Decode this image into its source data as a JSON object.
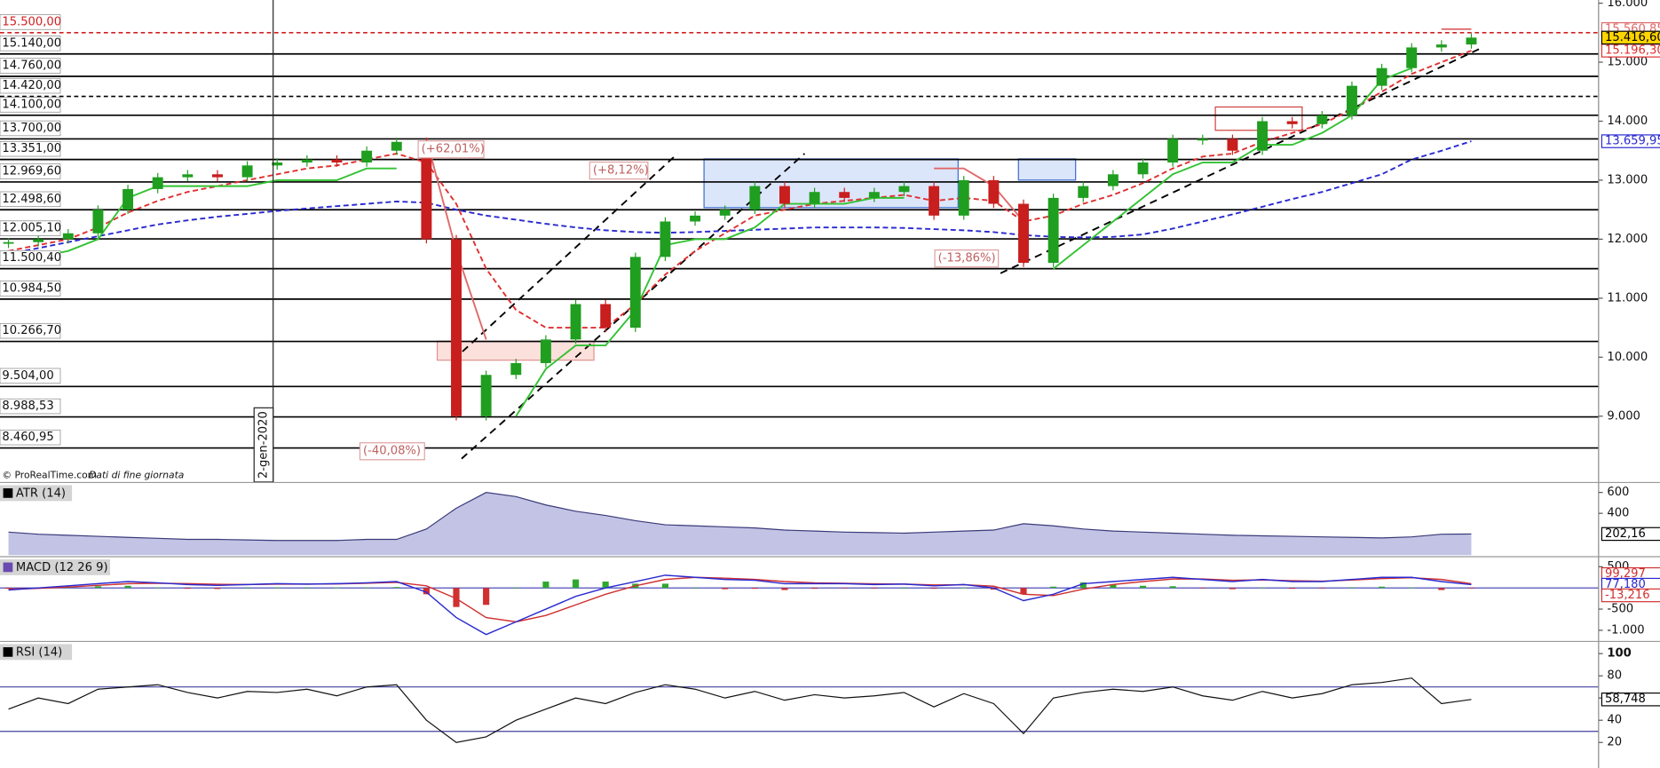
{
  "chart_data": [
    {
      "type": "candlestick",
      "values": [
        11950,
        12000,
        12100,
        12500,
        12850,
        13050,
        13100,
        13050,
        13250,
        13300,
        13350,
        13300,
        13500,
        13650,
        12000,
        9000,
        9700,
        9900,
        10300,
        10900,
        10500,
        11700,
        12300,
        12400,
        12500,
        12900,
        12600,
        12800,
        12700,
        12800,
        12900,
        12400,
        13000,
        12600,
        11600,
        12700,
        12900,
        13100,
        13300,
        13700,
        13700,
        13500,
        14000,
        13950,
        14100,
        14600,
        14900,
        15250,
        15300,
        15416.6
      ],
      "last_label": "15.416,60",
      "up_color": "#1f9e1f",
      "down_color": "#c81e1e",
      "ylim": [
        7885,
        16054
      ],
      "yticks": [
        {
          "value": 16000,
          "label": "16.000"
        },
        {
          "value": 15000,
          "label": "15.000"
        },
        {
          "value": 14000,
          "label": "14.000"
        },
        {
          "value": 13000,
          "label": "13.000"
        },
        {
          "value": 12000,
          "label": "12.000"
        },
        {
          "value": 11000,
          "label": "11.000"
        },
        {
          "value": 10000,
          "label": "10.000"
        },
        {
          "value": 9000,
          "label": "9.000"
        }
      ],
      "levels": [
        {
          "value": 15500,
          "label": "15.500,00",
          "color": "#d02020",
          "dashed": true
        },
        {
          "value": 15140,
          "label": "15.140,00"
        },
        {
          "value": 14760,
          "label": "14.760,00"
        },
        {
          "value": 14420,
          "label": "14.420,00",
          "dashed": true
        },
        {
          "value": 14100,
          "label": "14.100,00"
        },
        {
          "value": 13700,
          "label": "13.700,00"
        },
        {
          "value": 13351,
          "label": "13.351,00"
        },
        {
          "value": 12969.6,
          "label": "12.969,60"
        },
        {
          "value": 12498.6,
          "label": "12.498,60"
        },
        {
          "value": 12005.1,
          "label": "12.005,10"
        },
        {
          "value": 11500.4,
          "label": "11.500,40"
        },
        {
          "value": 10984.5,
          "label": "10.984,50"
        },
        {
          "value": 10266.7,
          "label": "10.266,70"
        },
        {
          "value": 9504,
          "label": "9.504,00"
        },
        {
          "value": 8988.53,
          "label": "8.988,53"
        },
        {
          "value": 8460.95,
          "label": "8.460,95"
        }
      ],
      "overlays": [
        {
          "color": "#2a2ad0",
          "dash": "5,3",
          "last_label": "13.659,95",
          "values": [
            11750,
            11850,
            11950,
            12050,
            12150,
            12250,
            12320,
            12380,
            12430,
            12480,
            12520,
            12560,
            12600,
            12640,
            12620,
            12500,
            12400,
            12330,
            12260,
            12200,
            12150,
            12120,
            12110,
            12120,
            12140,
            12160,
            12180,
            12200,
            12200,
            12200,
            12190,
            12170,
            12150,
            12120,
            12070,
            12040,
            12030,
            12040,
            12080,
            12180,
            12300,
            12420,
            12550,
            12680,
            12800,
            12950,
            13100,
            13350,
            13500,
            13659.95
          ]
        },
        {
          "color": "#e03030",
          "dash": "5,3",
          "last_label": "15.196,30",
          "values": [
            11800,
            11900,
            12000,
            12200,
            12450,
            12650,
            12800,
            12900,
            13000,
            13100,
            13200,
            13250,
            13350,
            13450,
            13300,
            12600,
            11500,
            10800,
            10500,
            10500,
            10500,
            10900,
            11400,
            11800,
            12100,
            12400,
            12500,
            12600,
            12650,
            12700,
            12750,
            12650,
            12700,
            12650,
            12300,
            12400,
            12600,
            12750,
            12950,
            13200,
            13400,
            13450,
            13650,
            13800,
            13950,
            14200,
            14500,
            14800,
            15000,
            15196.3
          ]
        },
        {
          "color": "#33c233",
          "values": [
            11700,
            11700,
            11800,
            12000,
            12700,
            12900,
            12900,
            12900,
            12900,
            13000,
            13000,
            13000,
            13200,
            13200,
            null,
            null,
            null,
            9000,
            9800,
            10200,
            10200,
            10800,
            11900,
            12000,
            12000,
            12200,
            12600,
            12600,
            12600,
            12700,
            12700,
            null,
            null,
            null,
            null,
            11500,
            11900,
            12300,
            12700,
            13100,
            13300,
            13300,
            13600,
            13600,
            13800,
            14100,
            14700,
            14900,
            null,
            null
          ]
        },
        {
          "color": "#e06a6a",
          "last_label": "15.560,85",
          "values": [
            null,
            null,
            null,
            null,
            null,
            null,
            null,
            null,
            null,
            null,
            null,
            null,
            null,
            null,
            13700,
            11800,
            10300,
            null,
            null,
            null,
            null,
            null,
            null,
            null,
            null,
            null,
            null,
            null,
            null,
            null,
            null,
            13200,
            13200,
            12900,
            12300,
            null,
            null,
            null,
            null,
            null,
            null,
            null,
            null,
            null,
            null,
            null,
            null,
            null,
            15560.85,
            15560.85
          ]
        }
      ],
      "annotations": [
        "(+62,01%)",
        "(+8,12%)",
        "(-13,86%)",
        "(-40,08%)"
      ],
      "date_marker": "2-gen-2020",
      "source": "© ProRealTime.com",
      "source_note": "Dati di fine giornata"
    },
    {
      "type": "area",
      "title": "ATR (14)",
      "color": "#3a3a7a",
      "fill": "#b8b8e0",
      "values": [
        220,
        200,
        190,
        180,
        170,
        160,
        150,
        150,
        145,
        140,
        140,
        140,
        150,
        150,
        250,
        450,
        600,
        560,
        480,
        420,
        380,
        330,
        290,
        280,
        270,
        260,
        240,
        230,
        220,
        215,
        210,
        220,
        230,
        240,
        300,
        280,
        250,
        230,
        220,
        210,
        200,
        190,
        185,
        180,
        175,
        170,
        165,
        175,
        200,
        202.16
      ],
      "last_label": "202,16",
      "ylim": [
        -10,
        690
      ],
      "yticks": [
        400,
        600
      ]
    },
    {
      "type": "macd",
      "title": "MACD (12 26 9)",
      "ylim": [
        -1250,
        725
      ],
      "yticks": [
        500,
        -500,
        {
          "value": -1000,
          "label": "-1.000"
        }
      ],
      "lines": [
        {
          "color": "#d03030",
          "last_label": "99,297",
          "values": [
            -30,
            -10,
            20,
            60,
            100,
            110,
            100,
            85,
            80,
            90,
            90,
            95,
            110,
            130,
            50,
            -250,
            -700,
            -800,
            -650,
            -400,
            -150,
            50,
            200,
            250,
            230,
            200,
            150,
            120,
            110,
            95,
            90,
            70,
            75,
            40,
            -150,
            -180,
            -30,
            80,
            150,
            210,
            210,
            180,
            190,
            170,
            160,
            185,
            220,
            240,
            200,
            99.297
          ]
        },
        {
          "color": "#2a2ad0",
          "last_label": "77,180",
          "values": [
            -50,
            0,
            50,
            100,
            150,
            120,
            80,
            60,
            80,
            100,
            90,
            100,
            120,
            150,
            -100,
            -700,
            -1100,
            -800,
            -500,
            -200,
            0,
            150,
            300,
            250,
            200,
            180,
            100,
            100,
            100,
            80,
            90,
            50,
            80,
            0,
            -300,
            -150,
            100,
            150,
            200,
            250,
            200,
            150,
            200,
            150,
            150,
            200,
            250,
            250,
            150,
            77.18
          ]
        }
      ],
      "histogram": {
        "up_color": "#2fa82f",
        "down_color": "#d03030",
        "last_label": "-13,216",
        "values": [
          -20,
          10,
          30,
          40,
          50,
          10,
          -20,
          -25,
          0,
          10,
          0,
          5,
          10,
          20,
          -150,
          -450,
          -400,
          0,
          150,
          200,
          150,
          100,
          100,
          0,
          -30,
          -20,
          -50,
          -20,
          -10,
          -15,
          0,
          -20,
          5,
          -40,
          -150,
          30,
          130,
          70,
          50,
          40,
          -10,
          -30,
          10,
          -20,
          -10,
          15,
          30,
          10,
          -50,
          -13.216
        ]
      }
    },
    {
      "type": "line",
      "title": "RSI (14)",
      "color": "#111111",
      "values": [
        50,
        60,
        55,
        68,
        70,
        72,
        65,
        60,
        66,
        65,
        68,
        62,
        70,
        72,
        40,
        20,
        25,
        40,
        50,
        60,
        55,
        65,
        72,
        68,
        60,
        66,
        58,
        63,
        60,
        62,
        65,
        52,
        64,
        55,
        28,
        60,
        65,
        68,
        66,
        70,
        62,
        58,
        66,
        60,
        64,
        72,
        74,
        78,
        55,
        58.748
      ],
      "last_label": "58,748",
      "ylim": [
        -3,
        110.5
      ],
      "yticks": [
        20,
        40,
        60,
        80,
        100
      ],
      "bands": [
        30,
        70
      ],
      "band_color": "#4040a0"
    }
  ]
}
